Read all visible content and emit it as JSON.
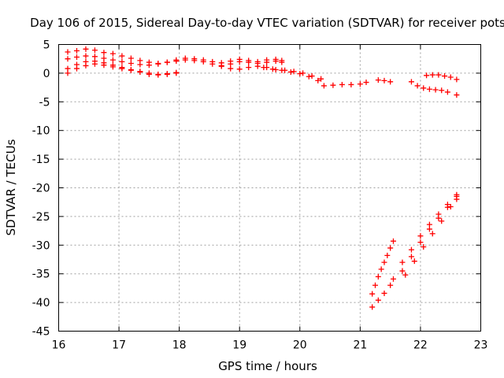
{
  "chart_data": {
    "type": "scatter",
    "title": "Day 106 of 2015, Sidereal Day-to-day VTEC variation (SDTVAR) for receiver pots",
    "xlabel": "GPS time / hours",
    "ylabel": "SDTVAR / TECUs",
    "xlim": [
      16,
      23
    ],
    "ylim": [
      -45,
      5
    ],
    "xticks": [
      16,
      17,
      18,
      19,
      20,
      21,
      22,
      23
    ],
    "yticks": [
      5,
      0,
      -5,
      -10,
      -15,
      -20,
      -25,
      -30,
      -35,
      -40,
      -45
    ],
    "grid": true,
    "marker": "+",
    "color": "#ff0000",
    "series": [
      {
        "x": [
          16.15,
          16.3,
          16.45,
          16.6,
          16.75,
          16.9,
          17.05,
          17.2,
          17.35,
          17.5,
          17.65,
          17.8,
          17.95,
          18.1,
          18.25,
          18.4,
          18.55,
          18.7,
          18.85,
          19.0,
          19.15,
          19.3,
          19.45,
          19.6,
          19.7
        ],
        "y": [
          3.7,
          3.9,
          4.2,
          4.0,
          3.6,
          3.4,
          3.0,
          2.6,
          2.2,
          1.9,
          1.7,
          1.9,
          2.3,
          2.6,
          2.5,
          2.3,
          2.0,
          1.8,
          2.1,
          2.4,
          2.2,
          2.0,
          2.3,
          2.4,
          2.2
        ]
      },
      {
        "x": [
          16.15,
          16.3,
          16.45,
          16.6,
          16.75,
          16.9,
          17.05,
          17.2,
          17.35,
          17.5,
          17.65,
          17.8,
          17.95,
          18.1,
          18.25,
          18.4,
          18.55,
          18.7,
          18.85,
          19.0,
          19.15,
          19.3,
          19.45,
          19.6,
          19.7
        ],
        "y": [
          2.5,
          2.8,
          3.0,
          2.9,
          2.6,
          2.3,
          2.0,
          1.7,
          1.5,
          1.4,
          1.6,
          1.9,
          2.1,
          2.3,
          2.2,
          2.0,
          1.6,
          1.3,
          1.6,
          2.0,
          1.9,
          1.7,
          1.9,
          2.1,
          1.9
        ]
      },
      {
        "x": [
          16.15,
          16.3,
          16.45,
          16.6,
          16.75,
          16.9,
          17.05,
          17.2,
          17.35,
          17.5,
          17.65,
          17.8,
          17.95
        ],
        "y": [
          0.8,
          1.5,
          2.0,
          2.1,
          1.8,
          1.4,
          1.0,
          0.6,
          0.3,
          0.0,
          -0.2,
          -0.1,
          0.1
        ]
      },
      {
        "x": [
          16.15,
          16.3,
          16.45,
          16.6,
          16.75,
          16.9,
          17.05,
          17.2,
          17.35,
          17.5,
          17.65,
          17.8,
          17.95
        ],
        "y": [
          0.0,
          0.8,
          1.3,
          1.6,
          1.4,
          1.1,
          0.8,
          0.5,
          0.2,
          -0.2,
          -0.3,
          -0.2,
          0.0
        ]
      },
      {
        "x": [
          18.7,
          18.85,
          19.0,
          19.15,
          19.3,
          19.45,
          19.6,
          19.75,
          19.9,
          20.05,
          20.2,
          20.35
        ],
        "y": [
          1.2,
          0.8,
          0.7,
          1.0,
          1.2,
          1.0,
          0.6,
          0.5,
          0.3,
          0.0,
          -0.5,
          -1.0
        ]
      },
      {
        "x": [
          19.4,
          19.55,
          19.7,
          19.85,
          20.0,
          20.15,
          20.3,
          20.4,
          20.55,
          20.7,
          20.85,
          21.0,
          21.1
        ],
        "y": [
          1.0,
          0.7,
          0.5,
          0.2,
          -0.1,
          -0.6,
          -1.3,
          -2.2,
          -2.1,
          -2.0,
          -2.0,
          -1.9,
          -1.6
        ]
      },
      {
        "x": [
          21.3,
          21.4,
          21.5
        ],
        "y": [
          -1.2,
          -1.3,
          -1.5
        ]
      },
      {
        "x": [
          21.85,
          21.95,
          22.05,
          22.15,
          22.25,
          22.35,
          22.45,
          22.6
        ],
        "y": [
          -1.5,
          -2.2,
          -2.6,
          -2.8,
          -2.9,
          -3.0,
          -3.3,
          -3.8
        ]
      },
      {
        "x": [
          22.1,
          22.2,
          22.3,
          22.4,
          22.5,
          22.6
        ],
        "y": [
          -0.4,
          -0.3,
          -0.3,
          -0.5,
          -0.7,
          -1.1
        ]
      },
      {
        "x": [
          21.2,
          21.25,
          21.3,
          21.35,
          21.4,
          21.45,
          21.5,
          21.55
        ],
        "y": [
          -38.5,
          -37.0,
          -35.5,
          -34.2,
          -33.0,
          -31.8,
          -30.5,
          -29.3
        ]
      },
      {
        "x": [
          21.2,
          21.3,
          21.4,
          21.5,
          21.55
        ],
        "y": [
          -40.8,
          -39.6,
          -38.4,
          -37.0,
          -35.9
        ]
      },
      {
        "x": [
          21.7,
          21.85,
          22.0,
          22.15,
          22.3,
          22.45,
          22.6
        ],
        "y": [
          -34.5,
          -32.0,
          -29.5,
          -27.2,
          -25.3,
          -23.4,
          -21.2
        ]
      },
      {
        "x": [
          21.7,
          21.85,
          22.0,
          22.15,
          22.3,
          22.45,
          22.6
        ],
        "y": [
          -33.0,
          -30.8,
          -28.4,
          -26.4,
          -24.6,
          -22.9,
          -21.5
        ]
      },
      {
        "x": [
          21.75,
          21.9,
          22.05,
          22.2,
          22.35,
          22.5,
          22.6
        ],
        "y": [
          -35.2,
          -32.8,
          -30.3,
          -28.0,
          -25.8,
          -23.3,
          -22.0
        ]
      }
    ]
  }
}
